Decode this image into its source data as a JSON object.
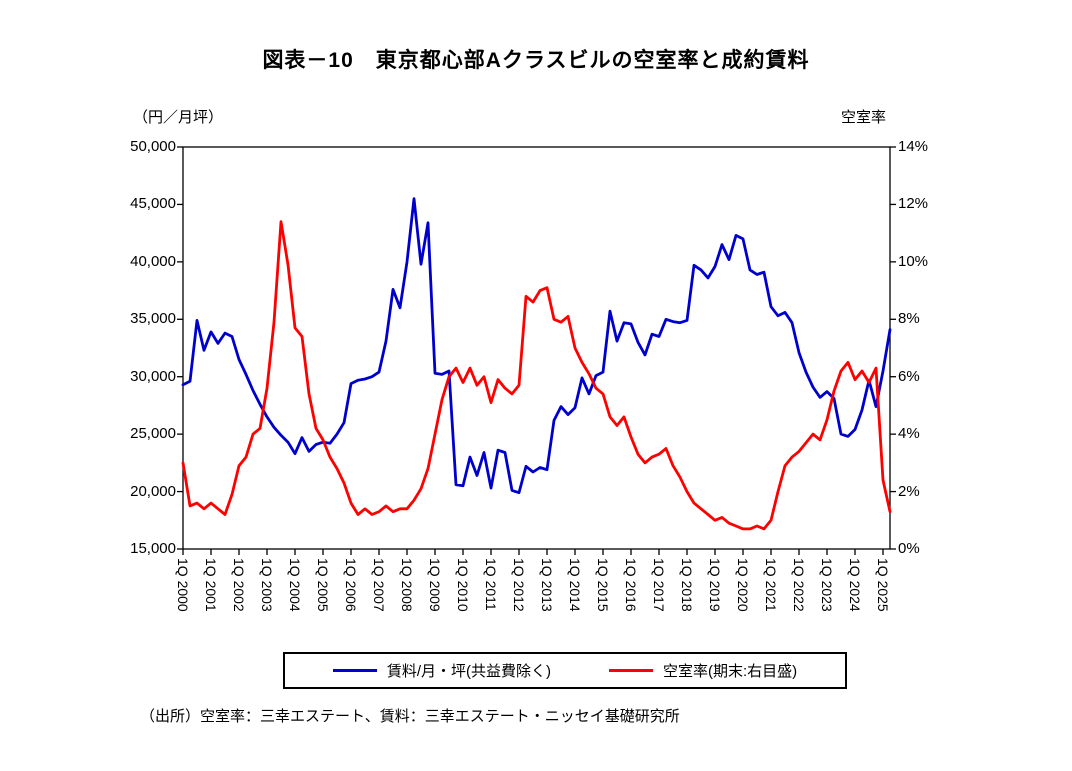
{
  "title": "図表－10　東京都心部Aクラスビルの空室率と成約賃料",
  "source": "（出所）空室率：三幸エステート、賃料：三幸エステート・ニッセイ基礎研究所",
  "chart_data": {
    "type": "line",
    "title": "図表－10　東京都心部Aクラスビルの空室率と成約賃料",
    "grid": false,
    "legend_position": "bottom",
    "left_axis": {
      "label": "（円／月坪）",
      "min": 15000,
      "max": 50000,
      "step": 5000,
      "tick_labels": [
        "15,000",
        "20,000",
        "25,000",
        "30,000",
        "35,000",
        "40,000",
        "45,000",
        "50,000"
      ]
    },
    "right_axis": {
      "label": "空室率",
      "min": 0,
      "max": 14,
      "step": 2,
      "tick_labels": [
        "0%",
        "2%",
        "4%",
        "6%",
        "8%",
        "10%",
        "12%",
        "14%"
      ]
    },
    "x_axis": {
      "unit": "quarter",
      "tick_every": 4,
      "tick_labels": [
        "1Q 2000",
        "1Q 2001",
        "1Q 2002",
        "1Q 2003",
        "1Q 2004",
        "1Q 2005",
        "1Q 2006",
        "1Q 2007",
        "1Q 2008",
        "1Q 2009",
        "1Q 2010",
        "1Q 2011",
        "1Q 2012",
        "1Q 2013",
        "1Q 2014",
        "1Q 2015",
        "1Q 2016",
        "1Q 2017",
        "1Q 2018",
        "1Q 2019",
        "1Q 2020",
        "1Q 2021",
        "1Q 2022",
        "1Q 2023",
        "1Q 2024",
        "1Q 2025"
      ]
    },
    "series": [
      {
        "name": "賃料/月・坪(共益費除く)",
        "axis": "left",
        "color": "#0000CC",
        "values": [
          29300,
          29600,
          34900,
          32300,
          33900,
          32900,
          33800,
          33500,
          31500,
          30200,
          28800,
          27600,
          26500,
          25600,
          24900,
          24300,
          23300,
          24700,
          23500,
          24100,
          24300,
          24200,
          25000,
          26000,
          29400,
          29700,
          29800,
          30000,
          30400,
          33100,
          37600,
          36000,
          40000,
          45500,
          39800,
          43400,
          30300,
          30200,
          30500,
          20600,
          20500,
          23000,
          21400,
          23400,
          20300,
          23600,
          23400,
          20100,
          19900,
          22200,
          21700,
          22100,
          21900,
          26200,
          27400,
          26700,
          27300,
          29900,
          28500,
          30100,
          30400,
          35700,
          33100,
          34700,
          34600,
          33000,
          31900,
          33700,
          33500,
          35000,
          34800,
          34700,
          34900,
          39700,
          39300,
          38600,
          39600,
          41500,
          40200,
          42300,
          42000,
          39300,
          38900,
          39100,
          36100,
          35300,
          35600,
          34700,
          32100,
          30400,
          29100,
          28200,
          28700,
          28100,
          25000,
          24800,
          25400,
          27100,
          29700,
          27400,
          30500,
          34100
        ]
      },
      {
        "name": "空室率(期末:右目盛)",
        "axis": "right",
        "color": "#FF0000",
        "values": [
          3.0,
          1.5,
          1.6,
          1.4,
          1.6,
          1.4,
          1.2,
          1.9,
          2.9,
          3.2,
          4.0,
          4.2,
          5.6,
          7.9,
          11.4,
          9.9,
          7.7,
          7.4,
          5.4,
          4.2,
          3.8,
          3.2,
          2.8,
          2.3,
          1.6,
          1.2,
          1.4,
          1.2,
          1.3,
          1.5,
          1.3,
          1.4,
          1.4,
          1.7,
          2.1,
          2.8,
          4.0,
          5.2,
          6.0,
          6.3,
          5.8,
          6.3,
          5.7,
          6.0,
          5.1,
          5.9,
          5.6,
          5.4,
          5.7,
          8.8,
          8.6,
          9.0,
          9.1,
          8.0,
          7.9,
          8.1,
          7.0,
          6.5,
          6.1,
          5.6,
          5.4,
          4.6,
          4.3,
          4.6,
          3.9,
          3.3,
          3.0,
          3.2,
          3.3,
          3.5,
          2.9,
          2.5,
          2.0,
          1.6,
          1.4,
          1.2,
          1.0,
          1.1,
          0.9,
          0.8,
          0.7,
          0.7,
          0.8,
          0.7,
          1.0,
          2.0,
          2.9,
          3.2,
          3.4,
          3.7,
          4.0,
          3.8,
          4.5,
          5.5,
          6.2,
          6.5,
          5.9,
          6.2,
          5.8,
          6.3,
          2.4,
          1.3
        ]
      }
    ]
  }
}
